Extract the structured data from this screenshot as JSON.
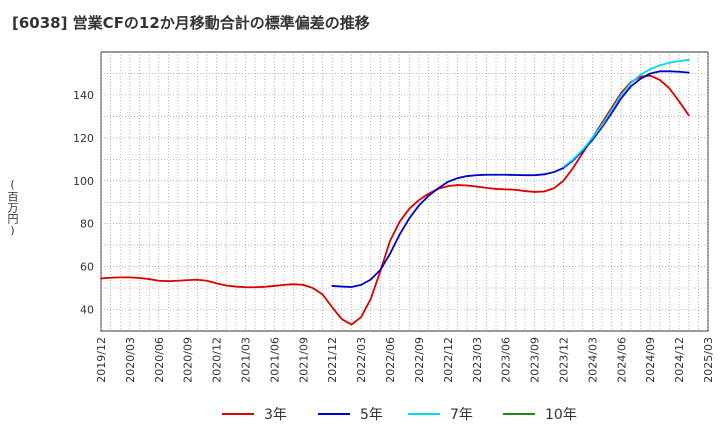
{
  "chart_data": {
    "type": "line",
    "title": "[6038]  営業CFの12か月移動合計の標準偏差の推移",
    "ylabel": "(百万円)",
    "xlabel": "",
    "ylim": [
      30,
      160
    ],
    "yticks": [
      40,
      60,
      80,
      100,
      120,
      140
    ],
    "x_range": [
      "2019-12",
      "2025-03"
    ],
    "x_tick_labels": [
      "2019/12",
      "2020/03",
      "2020/06",
      "2020/09",
      "2020/12",
      "2021/03",
      "2021/06",
      "2021/09",
      "2021/12",
      "2022/03",
      "2022/06",
      "2022/09",
      "2022/12",
      "2023/03",
      "2023/06",
      "2023/09",
      "2023/12",
      "2024/03",
      "2024/06",
      "2024/09",
      "2024/12",
      "2025/03"
    ],
    "grid": true,
    "legend_position": "bottom",
    "series": [
      {
        "name": "3年",
        "color": "#dd0000",
        "points": [
          [
            "2019-12",
            54.5
          ],
          [
            "2020-01",
            54.8
          ],
          [
            "2020-02",
            55.0
          ],
          [
            "2020-03",
            55.0
          ],
          [
            "2020-04",
            54.7
          ],
          [
            "2020-05",
            54.2
          ],
          [
            "2020-06",
            53.4
          ],
          [
            "2020-07",
            53.2
          ],
          [
            "2020-08",
            53.4
          ],
          [
            "2020-09",
            53.7
          ],
          [
            "2020-10",
            53.9
          ],
          [
            "2020-11",
            53.4
          ],
          [
            "2020-12",
            52.2
          ],
          [
            "2021-01",
            51.2
          ],
          [
            "2021-02",
            50.7
          ],
          [
            "2021-03",
            50.4
          ],
          [
            "2021-04",
            50.4
          ],
          [
            "2021-05",
            50.6
          ],
          [
            "2021-06",
            51.0
          ],
          [
            "2021-07",
            51.5
          ],
          [
            "2021-08",
            51.8
          ],
          [
            "2021-09",
            51.5
          ],
          [
            "2021-10",
            50.0
          ],
          [
            "2021-11",
            47.0
          ],
          [
            "2021-12",
            41.0
          ],
          [
            "2022-01",
            35.5
          ],
          [
            "2022-02",
            33.0
          ],
          [
            "2022-03",
            36.5
          ],
          [
            "2022-04",
            45.0
          ],
          [
            "2022-05",
            58.0
          ],
          [
            "2022-06",
            72.0
          ],
          [
            "2022-07",
            81.0
          ],
          [
            "2022-08",
            87.0
          ],
          [
            "2022-09",
            91.0
          ],
          [
            "2022-10",
            94.0
          ],
          [
            "2022-11",
            96.3
          ],
          [
            "2022-12",
            97.5
          ],
          [
            "2023-01",
            98.0
          ],
          [
            "2023-02",
            97.8
          ],
          [
            "2023-03",
            97.3
          ],
          [
            "2023-04",
            96.7
          ],
          [
            "2023-05",
            96.2
          ],
          [
            "2023-06",
            96.0
          ],
          [
            "2023-07",
            95.8
          ],
          [
            "2023-08",
            95.2
          ],
          [
            "2023-09",
            94.8
          ],
          [
            "2023-10",
            95.0
          ],
          [
            "2023-11",
            96.5
          ],
          [
            "2023-12",
            100.0
          ],
          [
            "2024-01",
            106.0
          ],
          [
            "2024-02",
            113.0
          ],
          [
            "2024-03",
            120.0
          ],
          [
            "2024-04",
            127.0
          ],
          [
            "2024-05",
            134.0
          ],
          [
            "2024-06",
            141.0
          ],
          [
            "2024-07",
            146.0
          ],
          [
            "2024-08",
            148.5
          ],
          [
            "2024-09",
            149.0
          ],
          [
            "2024-10",
            147.0
          ],
          [
            "2024-11",
            143.0
          ],
          [
            "2024-12",
            137.0
          ],
          [
            "2025-01",
            130.5
          ]
        ]
      },
      {
        "name": "5年",
        "color": "#0000cc",
        "points": [
          [
            "2021-12",
            51.0
          ],
          [
            "2022-01",
            50.7
          ],
          [
            "2022-02",
            50.5
          ],
          [
            "2022-03",
            51.5
          ],
          [
            "2022-04",
            54.0
          ],
          [
            "2022-05",
            58.5
          ],
          [
            "2022-06",
            66.0
          ],
          [
            "2022-07",
            75.0
          ],
          [
            "2022-08",
            82.5
          ],
          [
            "2022-09",
            88.5
          ],
          [
            "2022-10",
            93.0
          ],
          [
            "2022-11",
            96.5
          ],
          [
            "2022-12",
            99.5
          ],
          [
            "2023-01",
            101.2
          ],
          [
            "2023-02",
            102.2
          ],
          [
            "2023-03",
            102.6
          ],
          [
            "2023-04",
            102.8
          ],
          [
            "2023-05",
            102.8
          ],
          [
            "2023-06",
            102.8
          ],
          [
            "2023-07",
            102.7
          ],
          [
            "2023-08",
            102.6
          ],
          [
            "2023-09",
            102.6
          ],
          [
            "2023-10",
            103.0
          ],
          [
            "2023-11",
            104.0
          ],
          [
            "2023-12",
            106.0
          ],
          [
            "2024-01",
            109.5
          ],
          [
            "2024-02",
            114.0
          ],
          [
            "2024-03",
            119.0
          ],
          [
            "2024-04",
            125.0
          ],
          [
            "2024-05",
            131.5
          ],
          [
            "2024-06",
            138.5
          ],
          [
            "2024-07",
            144.0
          ],
          [
            "2024-08",
            147.5
          ],
          [
            "2024-09",
            150.0
          ],
          [
            "2024-10",
            151.0
          ],
          [
            "2024-11",
            151.0
          ],
          [
            "2024-12",
            150.8
          ],
          [
            "2025-01",
            150.4
          ]
        ]
      },
      {
        "name": "7年",
        "color": "#00ddee",
        "points": [
          [
            "2023-12",
            106.5
          ],
          [
            "2024-01",
            110.0
          ],
          [
            "2024-02",
            114.5
          ],
          [
            "2024-03",
            120.0
          ],
          [
            "2024-04",
            126.0
          ],
          [
            "2024-05",
            133.0
          ],
          [
            "2024-06",
            140.0
          ],
          [
            "2024-07",
            145.5
          ],
          [
            "2024-08",
            149.5
          ],
          [
            "2024-09",
            152.0
          ],
          [
            "2024-10",
            153.8
          ],
          [
            "2024-11",
            155.0
          ],
          [
            "2024-12",
            155.8
          ],
          [
            "2025-01",
            156.3
          ]
        ]
      },
      {
        "name": "10年",
        "color": "#228822",
        "points": []
      }
    ]
  }
}
